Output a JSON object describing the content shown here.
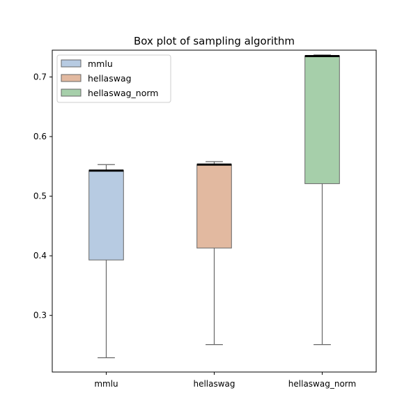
{
  "chart_data": {
    "type": "box",
    "title": "Box plot of sampling algorithm",
    "xlabel": "",
    "ylabel": "",
    "ylim": [
      0.205,
      0.745
    ],
    "yticks": [
      0.3,
      0.4,
      0.5,
      0.6,
      0.7
    ],
    "ytick_labels": [
      "0.3",
      "0.4",
      "0.5",
      "0.6",
      "0.7"
    ],
    "grid": false,
    "legend_position": "top-left",
    "categories": [
      "mmlu",
      "hellaswag",
      "hellaswag_norm"
    ],
    "series": [
      {
        "name": "mmlu",
        "whisker_low": 0.229,
        "q1": 0.393,
        "median": 0.543,
        "q3": 0.543,
        "whisker_high": 0.553,
        "color": "#b7cbe2"
      },
      {
        "name": "hellaswag",
        "whisker_low": 0.251,
        "q1": 0.413,
        "median": 0.553,
        "q3": 0.553,
        "whisker_high": 0.558,
        "color": "#e2b9a0"
      },
      {
        "name": "hellaswag_norm",
        "whisker_low": 0.251,
        "q1": 0.521,
        "median": 0.735,
        "q3": 0.735,
        "whisker_high": 0.737,
        "color": "#a6cfaa"
      }
    ]
  }
}
